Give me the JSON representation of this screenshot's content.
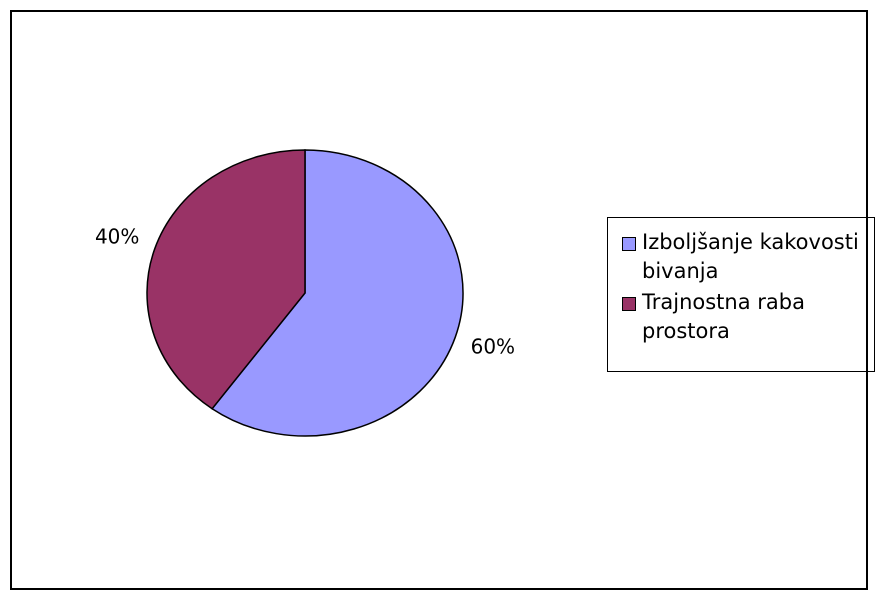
{
  "chart_data": {
    "type": "pie",
    "categories": [
      "Izboljšanje kakovosti bivanja",
      "Trajnostna raba prostora"
    ],
    "values": [
      60,
      40
    ],
    "value_labels": [
      "60%",
      "40%"
    ],
    "colors": [
      "#9999ff",
      "#993366"
    ],
    "legend": "right"
  }
}
